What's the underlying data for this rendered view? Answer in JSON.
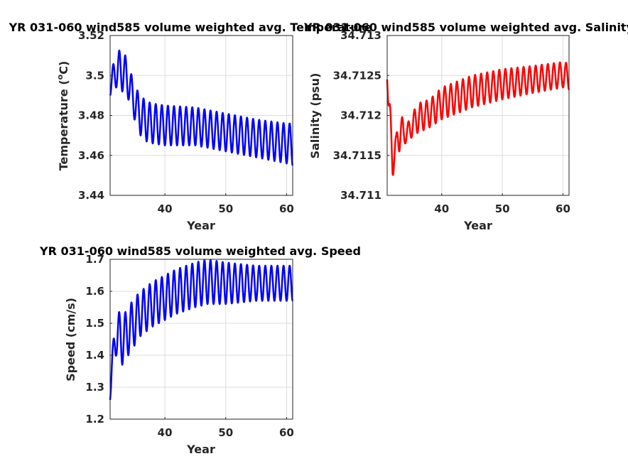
{
  "chart_data": [
    {
      "type": "line",
      "title": "YR 031-060 wind585 volume weighted avg. Temperature",
      "xlabel": "Year",
      "ylabel": "Temperature (°C)",
      "ylabel_parts": {
        "prefix": "Temperature (",
        "sup": "o",
        "suffix": "C)"
      },
      "xlim": [
        31,
        61
      ],
      "ylim": [
        3.44,
        3.52
      ],
      "xticks": [
        40,
        50,
        60
      ],
      "yticks": [
        3.44,
        3.46,
        3.48,
        3.5,
        3.52
      ],
      "ytick_labels": [
        "3.44",
        "3.46",
        "3.48",
        "3.5",
        "3.52"
      ],
      "grid": true,
      "color": "#0000ff",
      "seasonal_cycle_years": 1,
      "envelope": {
        "year": [
          31,
          32,
          33,
          34,
          35,
          36,
          37,
          38,
          40,
          45,
          50,
          55,
          60,
          61
        ],
        "max": [
          3.5,
          3.511,
          3.514,
          3.506,
          3.495,
          3.49,
          3.487,
          3.486,
          3.485,
          3.484,
          3.481,
          3.478,
          3.476,
          3.476
        ],
        "min": [
          3.49,
          3.494,
          3.492,
          3.488,
          3.478,
          3.47,
          3.467,
          3.466,
          3.465,
          3.465,
          3.462,
          3.459,
          3.456,
          3.455
        ]
      }
    },
    {
      "type": "line",
      "title": "YR 031-060 wind585 volume weighted avg. Salinity",
      "xlabel": "Year",
      "ylabel": "Salinity (psu)",
      "xlim": [
        31,
        61
      ],
      "ylim": [
        34.711,
        34.713
      ],
      "xticks": [
        40,
        50,
        60
      ],
      "yticks": [
        34.711,
        34.7115,
        34.712,
        34.7125,
        34.713
      ],
      "ytick_labels": [
        "34.711",
        "34.7115",
        "34.712",
        "34.7125",
        "34.713"
      ],
      "grid": true,
      "color": "#ff0000",
      "seasonal_cycle_years": 1,
      "envelope": {
        "year": [
          31,
          31.4,
          31.9,
          32.5,
          33,
          34,
          35,
          36,
          38,
          40,
          45,
          50,
          55,
          60,
          61
        ],
        "max": [
          34.71255,
          34.7122,
          34.7117,
          34.71175,
          34.7121,
          34.71185,
          34.712,
          34.71215,
          34.7122,
          34.71235,
          34.7125,
          34.71258,
          34.71262,
          34.71267,
          34.71265
        ],
        "min": [
          34.71245,
          34.7116,
          34.71122,
          34.7115,
          34.71155,
          34.71165,
          34.71172,
          34.71178,
          34.71185,
          34.71195,
          34.7121,
          34.7122,
          34.71228,
          34.71235,
          34.71232
        ]
      }
    },
    {
      "type": "line",
      "title": "YR 031-060 wind585 volume weighted avg. Speed",
      "xlabel": "Year",
      "ylabel": "Speed (cm/s)",
      "xlim": [
        31,
        61
      ],
      "ylim": [
        1.2,
        1.7
      ],
      "xticks": [
        40,
        50,
        60
      ],
      "yticks": [
        1.2,
        1.3,
        1.4,
        1.5,
        1.6,
        1.7
      ],
      "ytick_labels": [
        "1.2",
        "1.3",
        "1.4",
        "1.5",
        "1.6",
        "1.7"
      ],
      "grid": true,
      "color": "#0000ff",
      "seasonal_cycle_years": 1,
      "envelope": {
        "year": [
          31,
          31.5,
          32,
          33,
          34,
          35,
          36,
          38,
          40,
          42,
          45,
          47,
          50,
          55,
          60,
          61
        ],
        "max": [
          1.35,
          1.44,
          1.55,
          1.52,
          1.55,
          1.58,
          1.6,
          1.63,
          1.65,
          1.67,
          1.69,
          1.7,
          1.69,
          1.68,
          1.68,
          1.68
        ],
        "min": [
          1.26,
          1.35,
          1.4,
          1.37,
          1.4,
          1.43,
          1.46,
          1.49,
          1.51,
          1.53,
          1.55,
          1.56,
          1.56,
          1.57,
          1.57,
          1.57
        ]
      }
    }
  ]
}
